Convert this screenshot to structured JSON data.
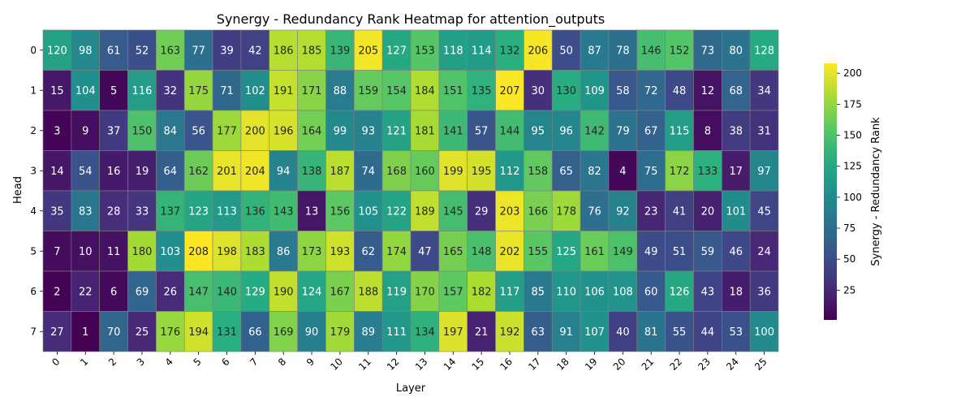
{
  "chart_data": {
    "type": "heatmap",
    "title": "Synergy - Redundancy Rank Heatmap for attention_outputs",
    "xlabel": "Layer",
    "ylabel": "Head",
    "x_categories": [
      "0",
      "1",
      "2",
      "3",
      "4",
      "5",
      "6",
      "7",
      "8",
      "9",
      "10",
      "11",
      "12",
      "13",
      "14",
      "15",
      "16",
      "17",
      "18",
      "19",
      "20",
      "21",
      "22",
      "23",
      "24",
      "25"
    ],
    "y_categories": [
      "0",
      "1",
      "2",
      "3",
      "4",
      "5",
      "6",
      "7"
    ],
    "values": [
      [
        120,
        98,
        61,
        52,
        163,
        77,
        39,
        42,
        186,
        185,
        139,
        205,
        127,
        153,
        118,
        114,
        132,
        206,
        50,
        87,
        78,
        146,
        152,
        73,
        80,
        128
      ],
      [
        15,
        104,
        5,
        116,
        32,
        175,
        71,
        102,
        191,
        171,
        88,
        159,
        154,
        184,
        151,
        135,
        207,
        30,
        130,
        109,
        58,
        72,
        48,
        12,
        68,
        34
      ],
      [
        3,
        9,
        37,
        150,
        84,
        56,
        177,
        200,
        196,
        164,
        99,
        93,
        121,
        181,
        141,
        57,
        144,
        95,
        96,
        142,
        79,
        67,
        115,
        8,
        38,
        31
      ],
      [
        14,
        54,
        16,
        19,
        64,
        162,
        201,
        204,
        94,
        138,
        187,
        74,
        168,
        160,
        199,
        195,
        112,
        158,
        65,
        82,
        4,
        75,
        172,
        133,
        17,
        97
      ],
      [
        35,
        83,
        28,
        33,
        137,
        123,
        113,
        136,
        143,
        13,
        156,
        105,
        122,
        189,
        145,
        29,
        203,
        166,
        178,
        76,
        92,
        23,
        41,
        20,
        101,
        45
      ],
      [
        7,
        10,
        11,
        180,
        103,
        208,
        198,
        183,
        86,
        173,
        193,
        62,
        174,
        47,
        165,
        148,
        202,
        155,
        125,
        161,
        149,
        49,
        51,
        59,
        46,
        24
      ],
      [
        2,
        22,
        6,
        69,
        26,
        147,
        140,
        129,
        190,
        124,
        167,
        188,
        119,
        170,
        157,
        182,
        117,
        85,
        110,
        106,
        108,
        60,
        126,
        43,
        18,
        36
      ],
      [
        27,
        1,
        70,
        25,
        176,
        194,
        131,
        66,
        169,
        90,
        179,
        89,
        111,
        134,
        197,
        21,
        192,
        63,
        91,
        107,
        40,
        81,
        55,
        44,
        53,
        100
      ]
    ],
    "vmin": 1,
    "vmax": 208,
    "colormap": "viridis",
    "colorbar": {
      "label": "Synergy - Redundancy Rank",
      "ticks": [
        25,
        50,
        75,
        100,
        125,
        150,
        175,
        200
      ],
      "position": "right"
    },
    "cell_border_color": "#808080"
  }
}
